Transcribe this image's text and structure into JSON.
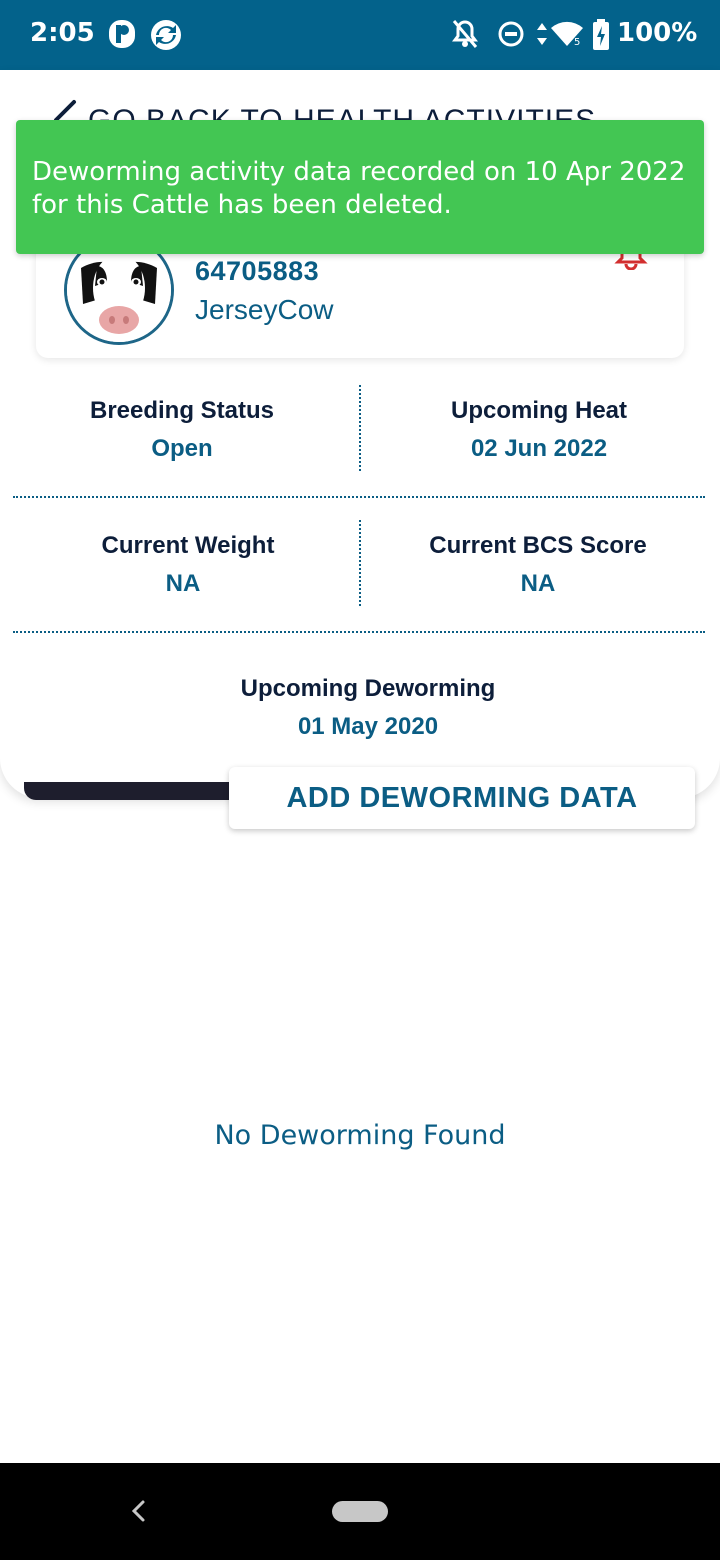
{
  "status_bar": {
    "time": "2:05",
    "battery_percent": "100%",
    "icons": [
      "app-notification-icon",
      "sync-icon",
      "notifications-off-icon",
      "do-not-disturb-icon",
      "data-arrows-icon",
      "wifi-icon",
      "battery-charging-icon"
    ]
  },
  "header": {
    "back_label": "GO BACK TO HEALTH ACTIVITIES"
  },
  "cattle": {
    "id": "64705883",
    "breed": "JerseyCow"
  },
  "stats": {
    "breeding_status_label": "Breeding Status",
    "breeding_status_value": "Open",
    "upcoming_heat_label": "Upcoming Heat",
    "upcoming_heat_value": "02 Jun 2022",
    "current_weight_label": "Current Weight",
    "current_weight_value": "NA",
    "current_bcs_label": "Current BCS Score",
    "current_bcs_value": "NA",
    "upcoming_deworming_label": "Upcoming Deworming",
    "upcoming_deworming_value": "01 May 2020"
  },
  "actions": {
    "add_deworming_label": "ADD DEWORMING DATA"
  },
  "list": {
    "empty_text": "No Deworming Found"
  },
  "toast": {
    "message": "Deworming activity data recorded on 10 Apr 2022 for this Cattle has been deleted."
  },
  "colors": {
    "status_bar": "#03628b",
    "primary_text": "#0b5d84",
    "dark_text": "#0d1e3a",
    "toast_bg": "#43c653",
    "bell": "#d32f2f"
  }
}
